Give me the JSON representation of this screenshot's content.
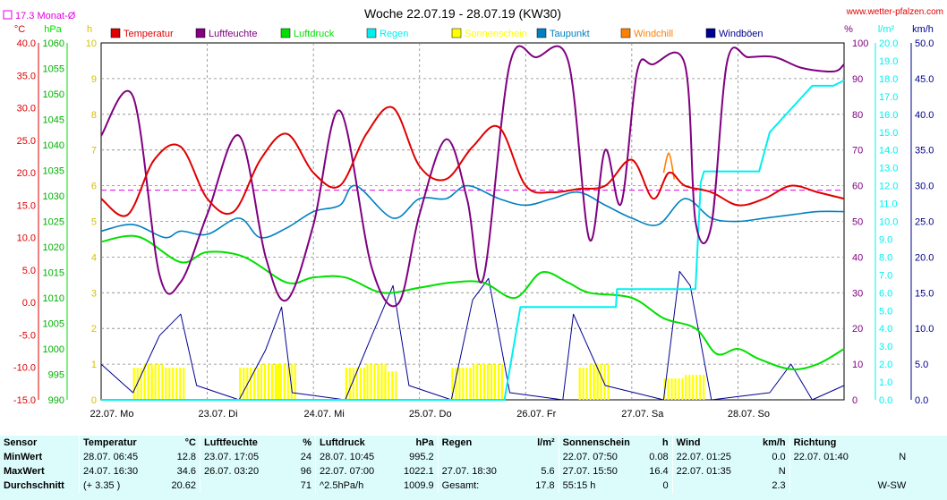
{
  "header": {
    "title": "Woche 22.07.19 - 28.07.19 (KW30)",
    "site": "www.wetter-pfalzen.com",
    "monthly_avg_label": "17.3 Monat-Ø"
  },
  "colors": {
    "temperature": "#e00000",
    "humidity": "#800080",
    "pressure": "#00e000",
    "rain": "#00f0f0",
    "sunshine": "#ffff00",
    "dewpoint": "#0080c0",
    "windchill": "#ff8000",
    "gust": "#000090",
    "avg_line": "#e000e0"
  },
  "chart_data": {
    "type": "line",
    "title": "Woche 22.07.19 - 28.07.19 (KW30)",
    "x_labels": [
      "22.07. Mo",
      "23.07. Di",
      "24.07. Mi",
      "25.07. Do",
      "26.07. Fr",
      "27.07. Sa",
      "28.07. So"
    ],
    "grid": true,
    "axes": {
      "temp_c": {
        "unit": "°C",
        "min": -15,
        "max": 40,
        "ticks": [
          "40.0",
          "35.0",
          "30.0",
          "25.0",
          "20.0",
          "15.0",
          "10.0",
          "5.0",
          "0.0",
          "-5.0",
          "-10.0",
          "-15.0"
        ]
      },
      "pressure_hpa": {
        "unit": "hPa",
        "min": 990,
        "max": 1060,
        "ticks": [
          "1060",
          "1055",
          "1050",
          "1045",
          "1040",
          "1035",
          "1030",
          "1025",
          "1020",
          "1015",
          "1010",
          "1005",
          "1000",
          "995",
          "990"
        ]
      },
      "sun_h": {
        "unit": "h",
        "min": 0,
        "max": 10,
        "ticks": [
          "10",
          "9",
          "8",
          "7",
          "6",
          "5",
          "4",
          "3",
          "2",
          "1",
          "0"
        ]
      },
      "humidity_pct": {
        "unit": "%",
        "min": 0,
        "max": 100,
        "ticks": [
          "100",
          "90",
          "80",
          "70",
          "60",
          "50",
          "40",
          "30",
          "20",
          "10",
          "0"
        ]
      },
      "rain_lm2": {
        "unit": "l/m²",
        "min": 0,
        "max": 20,
        "ticks": [
          "20.0",
          "19.0",
          "18.0",
          "17.0",
          "16.0",
          "15.0",
          "14.0",
          "13.0",
          "12.0",
          "11.0",
          "10.0",
          "9.0",
          "8.0",
          "7.0",
          "6.0",
          "5.0",
          "4.0",
          "3.0",
          "2.0",
          "1.0",
          "0.0"
        ]
      },
      "wind_kmh": {
        "unit": "km/h",
        "min": 0,
        "max": 50,
        "ticks": [
          "50.0",
          "45.0",
          "40.0",
          "35.0",
          "30.0",
          "25.0",
          "20.0",
          "15.0",
          "10.0",
          "5.0",
          "0.0"
        ]
      }
    },
    "monthly_avg_temp": 17.3,
    "series": [
      {
        "name": "Temperatur",
        "axis": "temp_c",
        "x": [
          0,
          0.25,
          0.5,
          0.75,
          1,
          1.25,
          1.5,
          1.75,
          2,
          2.25,
          2.5,
          2.75,
          3,
          3.25,
          3.5,
          3.75,
          4,
          4.25,
          4.5,
          4.75,
          5,
          5.2,
          5.35,
          5.5,
          5.75,
          6,
          6.25,
          6.5,
          6.75,
          7
        ],
        "y": [
          16,
          13.5,
          22,
          24,
          16,
          14,
          22,
          26,
          20,
          18,
          26,
          30,
          21,
          19,
          24,
          27,
          18,
          17,
          17.5,
          18,
          22,
          16,
          20,
          18,
          17,
          15,
          16,
          18,
          17,
          16
        ]
      },
      {
        "name": "Luftfeuchte",
        "axis": "humidity_pct",
        "x": [
          0,
          0.3,
          0.55,
          0.75,
          1,
          1.3,
          1.55,
          1.75,
          2,
          2.25,
          2.55,
          2.8,
          3,
          3.25,
          3.45,
          3.6,
          3.85,
          4.1,
          4.4,
          4.6,
          4.75,
          4.9,
          5.05,
          5.2,
          5.5,
          5.6,
          5.75,
          5.9,
          6.1,
          6.35,
          6.6,
          6.9,
          7
        ],
        "y": [
          74,
          85,
          35,
          33,
          52,
          74,
          40,
          28,
          49,
          81,
          37,
          27,
          52,
          73,
          56,
          34,
          94,
          96,
          95,
          45,
          70,
          55,
          92,
          94,
          94,
          50,
          49,
          95,
          96,
          96,
          93,
          92,
          94
        ]
      },
      {
        "name": "Luftdruck",
        "axis": "pressure_hpa",
        "x": [
          0,
          0.35,
          0.75,
          1,
          1.35,
          1.75,
          2,
          2.3,
          2.65,
          3,
          3.3,
          3.6,
          3.9,
          4.15,
          4.4,
          4.6,
          5,
          5.3,
          5.6,
          5.8,
          6,
          6.2,
          6.5,
          6.75,
          7
        ],
        "y": [
          1021,
          1022,
          1017,
          1019,
          1018,
          1013,
          1014,
          1014,
          1011,
          1012,
          1013,
          1013,
          1010,
          1015,
          1013,
          1011,
          1010,
          1006,
          1004,
          999,
          1000,
          998,
          996,
          997,
          1000
        ]
      },
      {
        "name": "Regen",
        "axis": "rain_lm2",
        "x": [
          0,
          3.8,
          3.95,
          4.6,
          4.85,
          4.86,
          5.6,
          5.65,
          5.68,
          5.75,
          6,
          6.2,
          6.3,
          6.7,
          6.9,
          7
        ],
        "y": [
          0,
          0,
          5.2,
          5.2,
          5.2,
          6.2,
          6.2,
          12.2,
          12.8,
          12.8,
          12.8,
          12.8,
          15,
          17.6,
          17.6,
          17.9
        ]
      },
      {
        "name": "Sonnenschein",
        "axis": "sun_h",
        "x": [
          0.3,
          0.4,
          0.6,
          1.3,
          1.5,
          1.65,
          2.3,
          2.5,
          2.6,
          3.3,
          3.5,
          3.6,
          4.5,
          4.6,
          5.3,
          5.5
        ],
        "y": [
          0.9,
          1,
          0.9,
          0.9,
          1,
          1,
          0.9,
          1,
          0.8,
          0.9,
          1,
          1,
          0.9,
          1,
          0.6,
          0.7
        ]
      },
      {
        "name": "Taupunkt",
        "axis": "temp_c",
        "x": [
          0,
          0.3,
          0.6,
          0.75,
          1,
          1.3,
          1.5,
          1.75,
          2,
          2.25,
          2.4,
          2.75,
          3,
          3.25,
          3.45,
          3.75,
          4,
          4.25,
          4.5,
          4.75,
          5,
          5.25,
          5.5,
          5.75,
          6,
          6.25,
          6.5,
          6.75,
          7
        ],
        "y": [
          11,
          12,
          10,
          11,
          10.5,
          13,
          10,
          11.5,
          14,
          15,
          18,
          13,
          16,
          16,
          18,
          16,
          15,
          16,
          17,
          15,
          13,
          12,
          16,
          13,
          12.5,
          13,
          13.5,
          14,
          14
        ]
      },
      {
        "name": "Windchill",
        "axis": "temp_c",
        "x": [
          5.3,
          5.35,
          5.4
        ],
        "y": [
          20,
          23,
          19
        ]
      },
      {
        "name": "Windböen",
        "axis": "wind_kmh",
        "x": [
          0,
          0.3,
          0.55,
          0.75,
          0.9,
          1.3,
          1.55,
          1.7,
          1.8,
          2.3,
          2.55,
          2.75,
          2.9,
          3.3,
          3.5,
          3.65,
          3.85,
          4.35,
          4.45,
          4.75,
          5.3,
          5.45,
          5.55,
          5.75,
          6.3,
          6.5,
          6.7,
          7
        ],
        "y": [
          5,
          1,
          9,
          12,
          2,
          0,
          7,
          13,
          1,
          0,
          9,
          16,
          2,
          0,
          14,
          17,
          1,
          0,
          12,
          2,
          0,
          18,
          16,
          0,
          1,
          5,
          0,
          2
        ]
      }
    ]
  },
  "legend": [
    {
      "label": "Temperatur",
      "color": "#e00000"
    },
    {
      "label": "Luftfeuchte",
      "color": "#800080"
    },
    {
      "label": "Luftdruck",
      "color": "#00e000"
    },
    {
      "label": "Regen",
      "color": "#00f0f0"
    },
    {
      "label": "Sonnenschein",
      "color": "#ffff00"
    },
    {
      "label": "Taupunkt",
      "color": "#0080c0"
    },
    {
      "label": "Windchill",
      "color": "#ff8000"
    },
    {
      "label": "Windböen",
      "color": "#000090"
    }
  ],
  "table": {
    "header": [
      [
        "Sensor",
        ""
      ],
      [
        "Temperatur",
        "°C"
      ],
      [
        "Luftfeuchte",
        "%"
      ],
      [
        "Luftdruck",
        "hPa"
      ],
      [
        "Regen",
        "l/m²"
      ],
      [
        "Sonnenschein",
        "h"
      ],
      [
        "Wind",
        "km/h"
      ],
      [
        "Richtung",
        ""
      ]
    ],
    "rows": [
      {
        "label": "MinWert",
        "cells": [
          [
            "28.07.  06:45",
            "12.8"
          ],
          [
            "23.07.  17:05",
            "24"
          ],
          [
            "28.07.  10:45",
            "995.2"
          ],
          [
            "",
            ""
          ],
          [
            "22.07.  07:50",
            "0.08"
          ],
          [
            "22.07.  01:25",
            "0.0"
          ],
          [
            "22.07.  01:40",
            "N"
          ]
        ]
      },
      {
        "label": "MaxWert",
        "cells": [
          [
            "24.07.  16:30",
            "34.6"
          ],
          [
            "26.07.  03:20",
            "96"
          ],
          [
            "22.07.  07:00",
            "1022.1"
          ],
          [
            "27.07.  18:30",
            "5.6"
          ],
          [
            "27.07.  15:50",
            "16.4"
          ],
          [
            "22.07.  01:35",
            "N"
          ],
          [
            "",
            ""
          ]
        ]
      },
      {
        "label": "Durchschnitt",
        "cells": [
          [
            "(+ 3.35 )",
            "20.62"
          ],
          [
            "",
            "71"
          ],
          [
            "^2.5hPa/h",
            "1009.9"
          ],
          [
            "Gesamt:",
            "17.8"
          ],
          [
            "55:15 h",
            "0"
          ],
          [
            "",
            "2.3"
          ],
          [
            "",
            "W-SW"
          ]
        ]
      }
    ]
  }
}
